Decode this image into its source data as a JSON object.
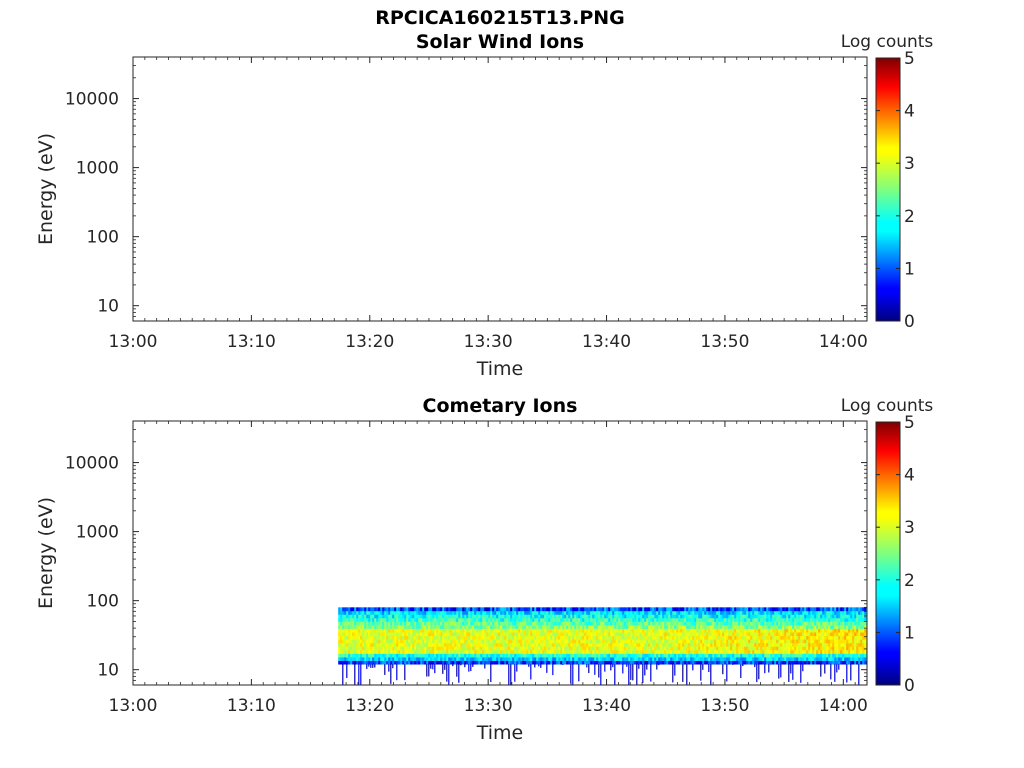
{
  "figure_title": "RPCICA160215T13.PNG",
  "chart_data": [
    {
      "type": "heatmap",
      "title": "Solar Wind Ions",
      "xlabel": "Time",
      "ylabel": "Energy (eV)",
      "x_ticks": [
        "13:00",
        "13:10",
        "13:20",
        "13:30",
        "13:40",
        "13:50",
        "14:00"
      ],
      "xlim_minutes": [
        0,
        62
      ],
      "y_scale": "log",
      "y_ticks": [
        10,
        100,
        1000,
        10000
      ],
      "y_tick_labels": [
        "10",
        "100",
        "1000",
        "10000"
      ],
      "ylim": [
        6,
        40000
      ],
      "colorbar": {
        "label": "Log counts",
        "min": 0,
        "max": 5,
        "ticks": [
          "0",
          "1",
          "2",
          "3",
          "4",
          "5"
        ],
        "colormap": "jet"
      },
      "data": {
        "present": false
      }
    },
    {
      "type": "heatmap",
      "title": "Cometary Ions",
      "xlabel": "Time",
      "ylabel": "Energy (eV)",
      "x_ticks": [
        "13:00",
        "13:10",
        "13:20",
        "13:30",
        "13:40",
        "13:50",
        "14:00"
      ],
      "xlim_minutes": [
        0,
        62
      ],
      "y_scale": "log",
      "y_ticks": [
        10,
        100,
        1000,
        10000
      ],
      "y_tick_labels": [
        "10",
        "100",
        "1000",
        "10000"
      ],
      "ylim": [
        6,
        40000
      ],
      "colorbar": {
        "label": "Log counts",
        "min": 0,
        "max": 5,
        "ticks": [
          "0",
          "1",
          "2",
          "3",
          "4",
          "5"
        ],
        "colormap": "jet"
      },
      "data": {
        "present": true,
        "time_start": "13:17:20",
        "time_end": "14:02:00",
        "energy_upper_eV": 80,
        "band_core_eV": [
          18,
          40
        ],
        "band_core_log_counts": 3.0,
        "band_edge_log_counts": 1.8,
        "low_energy_edge_eV": 12,
        "low_energy_edge_log_counts": 0.3
      }
    }
  ]
}
